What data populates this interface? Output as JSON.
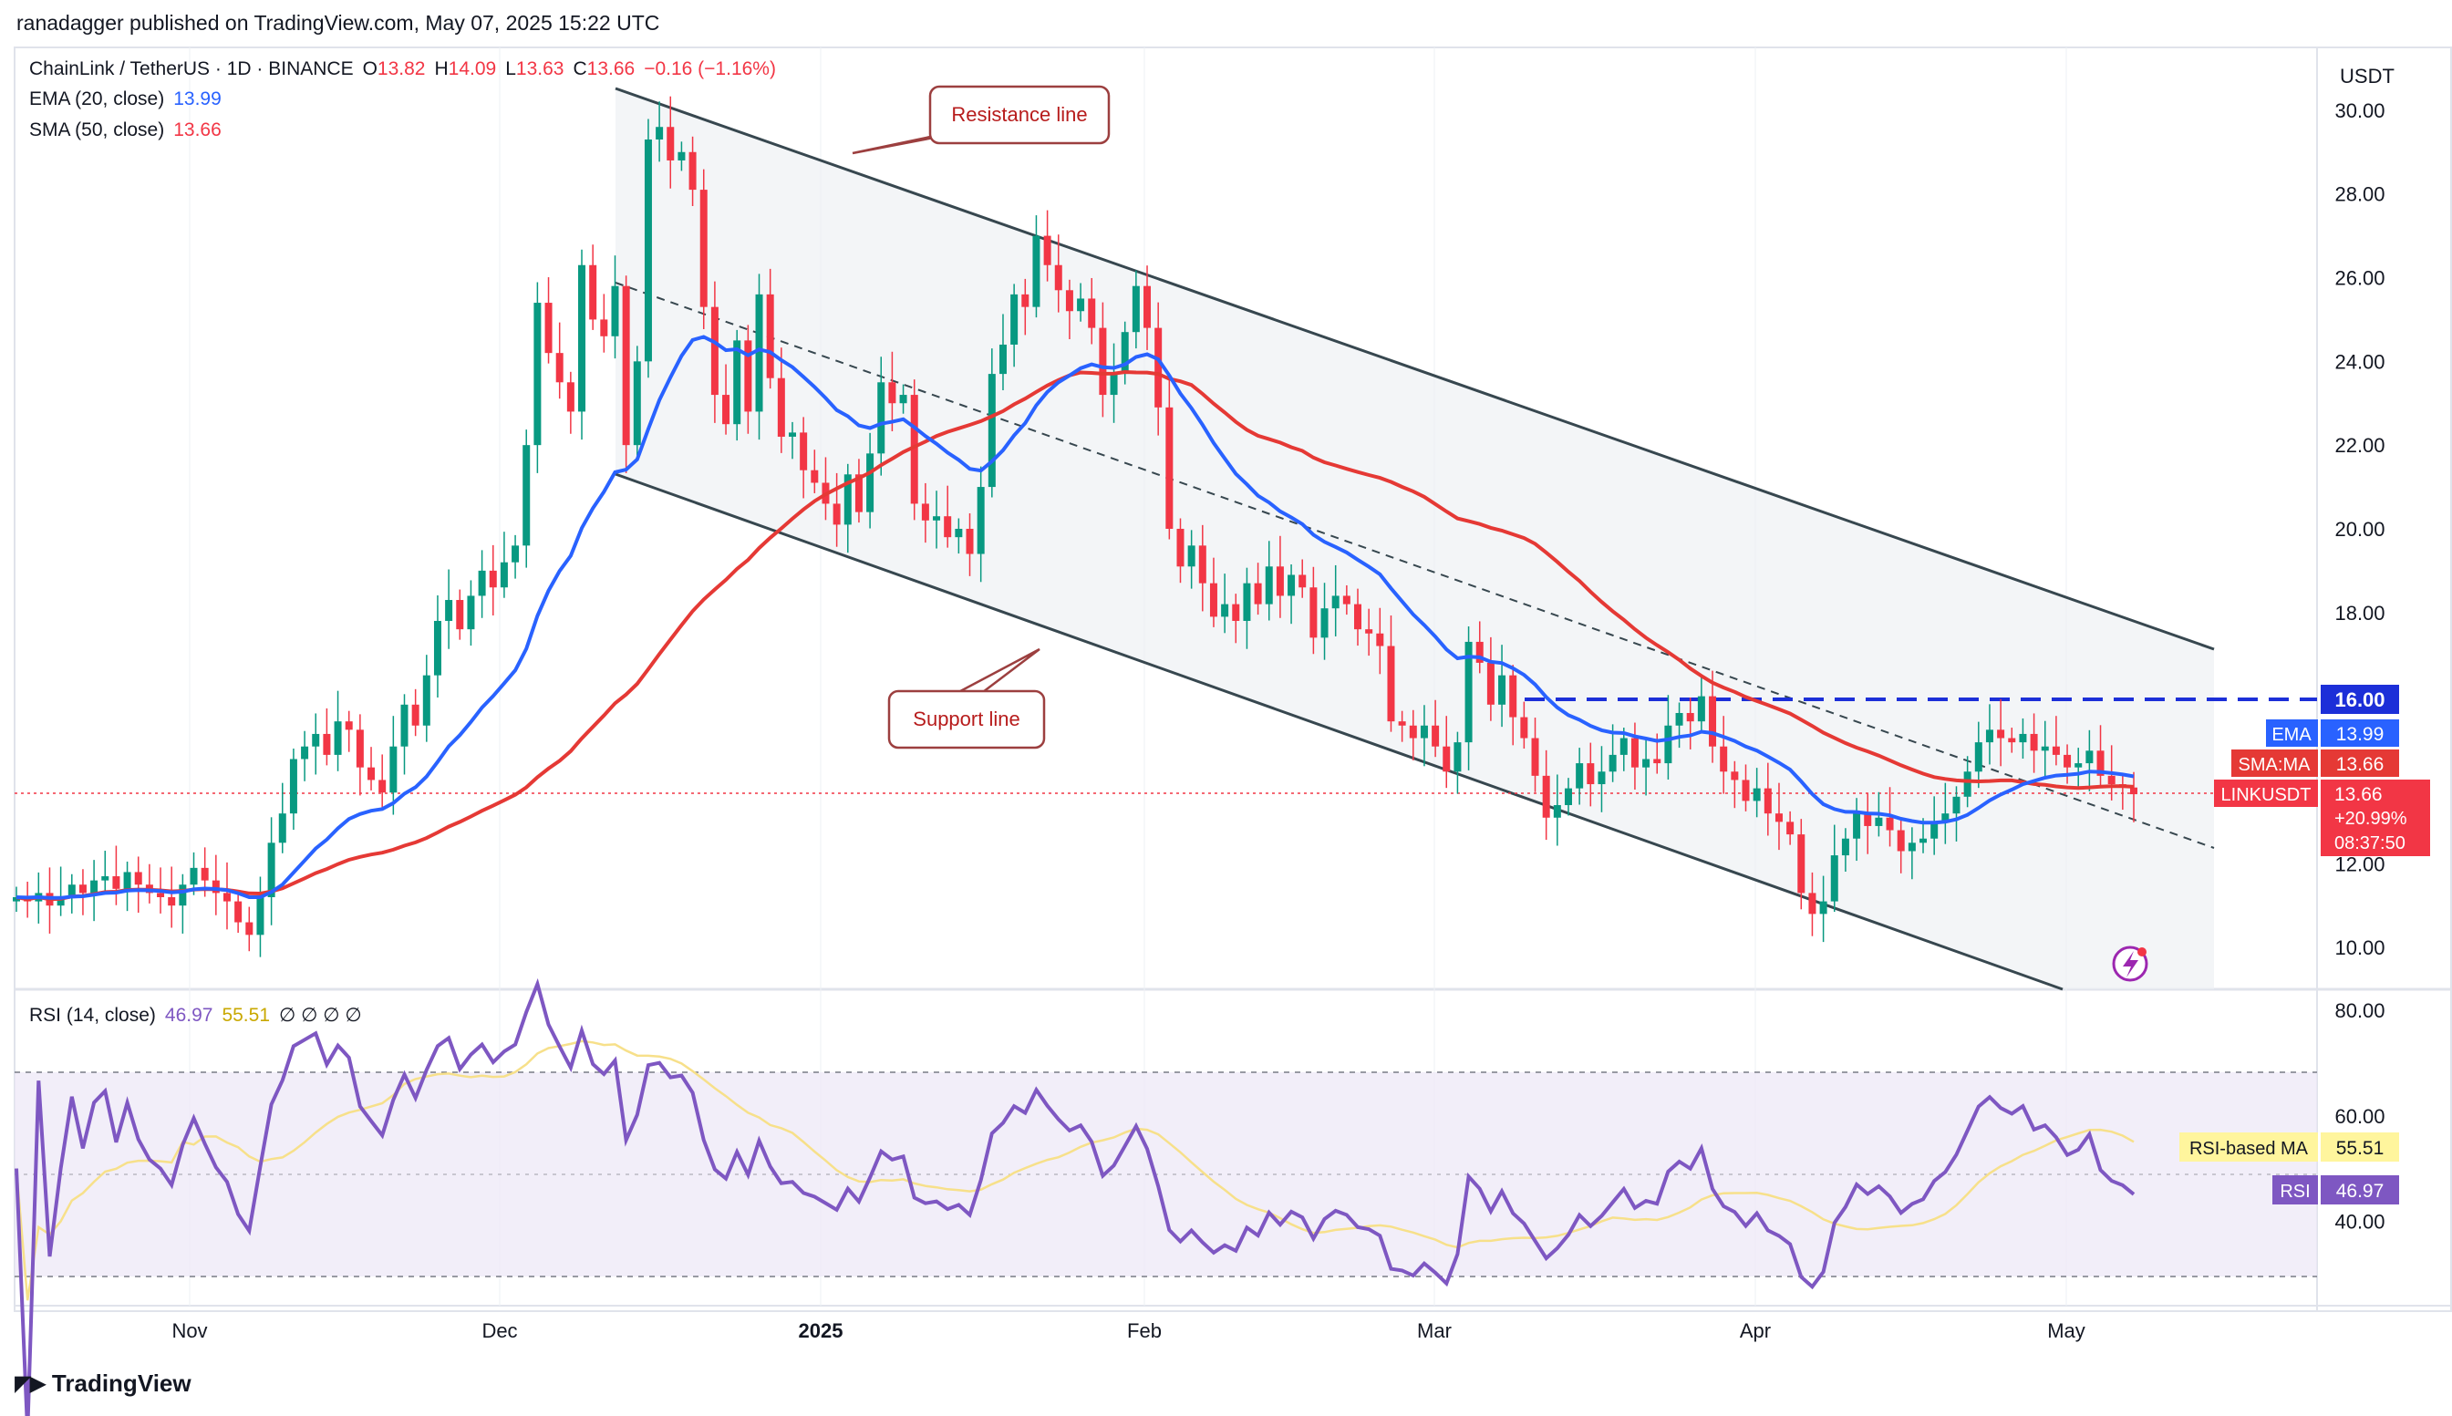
{
  "header": {
    "published": "ranadagger published on TradingView.com, May 07, 2025 15:22 UTC"
  },
  "legend": {
    "symbol": "ChainLink / TetherUS · 1D · BINANCE",
    "o_label": "O",
    "o": "13.82",
    "h_label": "H",
    "h": "14.09",
    "l_label": "L",
    "l": "13.63",
    "c_label": "C",
    "c": "13.66",
    "change": "−0.16 (−1.16%)",
    "ema_label": "EMA (20, close)",
    "ema_value": "13.99",
    "sma_label": "SMA (50, close)",
    "sma_value": "13.66",
    "rsi_label": "RSI (14, close)",
    "rsi_value": "46.97",
    "rsi_ma_value": "55.51",
    "rsi_extra": "∅ ∅ ∅ ∅"
  },
  "annotations": {
    "resistance": "Resistance line",
    "support": "Support line"
  },
  "price_scale": {
    "currency": "USDT",
    "ticks": [
      "30.00",
      "28.00",
      "26.00",
      "24.00",
      "22.00",
      "20.00",
      "18.00",
      "12.00",
      "10.00"
    ],
    "tick_values": [
      30,
      28,
      26,
      24,
      22,
      20,
      18,
      12,
      10
    ],
    "level_16": "16.00",
    "ema_tag": {
      "label": "EMA",
      "value": "13.99"
    },
    "sma_tag": {
      "label": "SMA:MA",
      "value": "13.66"
    },
    "last_tag": {
      "label": "LINKUSDT",
      "value": "13.66",
      "change": "+20.99%",
      "countdown": "08:37:50"
    }
  },
  "rsi_scale": {
    "ticks": [
      "80.00",
      "60.00",
      "40.00"
    ],
    "tick_values": [
      80,
      60,
      40
    ],
    "ma_tag": {
      "label": "RSI-based MA",
      "value": "55.51"
    },
    "rsi_tag": {
      "label": "RSI",
      "value": "46.97"
    }
  },
  "time_axis": {
    "labels": [
      "Nov",
      "Dec",
      "2025",
      "Feb",
      "Mar",
      "Apr",
      "May"
    ],
    "bold": [
      false,
      false,
      true,
      false,
      false,
      false,
      false
    ]
  },
  "footer": {
    "brand": "TradingView"
  },
  "colors": {
    "up": "#089981",
    "down": "#f23645",
    "ema": "#2962ff",
    "sma": "#f23645",
    "rsi": "#7e57c2",
    "rsi_ma": "#f7e08a",
    "channel": "#37474f",
    "level": "#1c2fd8"
  },
  "chart_data": {
    "type": "candlestick",
    "title": "ChainLink / TetherUS · 1D · BINANCE",
    "ylim": [
      9.0,
      31.5
    ],
    "x_start": "2024-10-18",
    "x_end": "2025-05-07",
    "closes": [
      11.2,
      11.1,
      11.3,
      11.0,
      11.2,
      11.5,
      11.3,
      11.6,
      11.7,
      11.4,
      11.8,
      11.5,
      11.3,
      11.2,
      11.0,
      11.5,
      11.9,
      11.6,
      11.3,
      11.1,
      10.6,
      10.3,
      11.2,
      12.5,
      13.2,
      14.5,
      14.8,
      15.1,
      14.6,
      15.4,
      15.2,
      14.3,
      14.0,
      13.7,
      14.8,
      15.8,
      15.3,
      16.5,
      17.8,
      18.3,
      17.6,
      18.4,
      19.0,
      18.6,
      19.2,
      19.6,
      22.0,
      25.4,
      24.2,
      23.5,
      22.8,
      26.3,
      25.0,
      24.6,
      25.8,
      22.0,
      24.0,
      29.3,
      29.6,
      28.8,
      29.0,
      28.1,
      25.3,
      23.2,
      22.5,
      24.5,
      22.8,
      25.6,
      23.6,
      22.2,
      22.3,
      21.4,
      21.1,
      20.6,
      20.1,
      21.3,
      20.4,
      21.8,
      23.5,
      23.0,
      23.2,
      20.6,
      20.2,
      20.3,
      19.8,
      20.0,
      19.4,
      21.0,
      23.7,
      24.4,
      25.6,
      25.3,
      27.0,
      26.3,
      25.7,
      25.2,
      25.5,
      24.8,
      23.2,
      23.7,
      24.7,
      25.8,
      24.8,
      22.9,
      20.0,
      19.1,
      19.6,
      18.7,
      17.9,
      18.2,
      17.8,
      18.7,
      18.2,
      19.1,
      18.4,
      18.9,
      18.6,
      17.4,
      18.1,
      18.4,
      18.2,
      17.6,
      17.5,
      17.2,
      15.4,
      15.3,
      15.0,
      15.3,
      14.8,
      14.2,
      14.9,
      17.3,
      16.8,
      15.8,
      16.5,
      15.5,
      15.0,
      14.1,
      13.1,
      13.4,
      13.8,
      14.4,
      13.9,
      14.2,
      14.6,
      15.0,
      14.3,
      14.5,
      14.4,
      15.3,
      15.6,
      15.4,
      16.0,
      14.8,
      14.2,
      14.0,
      13.5,
      13.8,
      13.2,
      13.0,
      12.7,
      11.3,
      10.8,
      11.1,
      12.2,
      12.6,
      13.2,
      12.9,
      13.1,
      12.8,
      12.3,
      12.5,
      12.6,
      13.0,
      13.2,
      13.6,
      14.2,
      14.9,
      15.2,
      15.0,
      14.9,
      15.1,
      14.7,
      14.8,
      14.6,
      14.3,
      14.4,
      14.7,
      14.1,
      13.9,
      13.82,
      13.66
    ],
    "ema_20": {
      "last": 13.99
    },
    "sma_50": {
      "last": 13.66
    },
    "resistance_line": {
      "from": [
        "2024-12-10",
        30.8
      ],
      "to": [
        "2025-05-20",
        17.1
      ]
    },
    "support_line": {
      "from": [
        "2024-12-10",
        21.5
      ],
      "to": [
        "2025-05-15",
        9.0
      ]
    },
    "middle_line": {
      "from": [
        "2024-12-10",
        26.2
      ],
      "to": [
        "2025-05-20",
        12.3
      ]
    },
    "horizontal_level": 16.0,
    "rsi": {
      "last": 46.97,
      "ma_last": 55.51,
      "upper": 70,
      "middle": 50,
      "lower": 30,
      "ylim": [
        24,
        84
      ]
    }
  }
}
